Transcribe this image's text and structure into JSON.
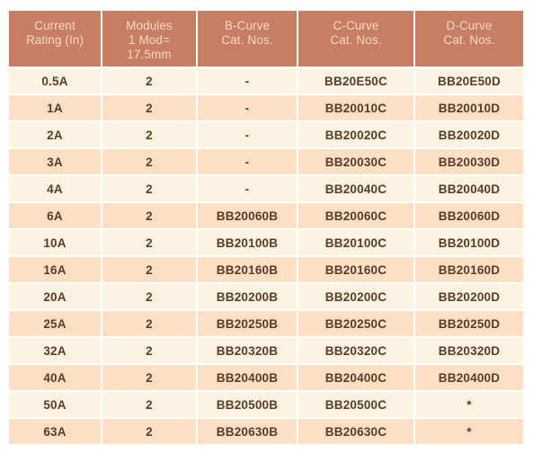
{
  "table": {
    "columns": [
      {
        "id": "current-rating",
        "label_lines": [
          "Current",
          "Rating (In)"
        ]
      },
      {
        "id": "modules",
        "label_lines": [
          "Modules",
          "1 Mod=",
          "17.5mm"
        ]
      },
      {
        "id": "b-curve",
        "label_lines": [
          "B-Curve",
          "Cat. Nos."
        ]
      },
      {
        "id": "c-curve",
        "label_lines": [
          "C-Curve",
          "Cat. Nos."
        ]
      },
      {
        "id": "d-curve",
        "label_lines": [
          "D-Curve",
          "Cat. Nos."
        ]
      }
    ],
    "rows": [
      [
        "0.5A",
        "2",
        "-",
        "BB20E50C",
        "BB20E50D"
      ],
      [
        "1A",
        "2",
        "-",
        "BB20010C",
        "BB20010D"
      ],
      [
        "2A",
        "2",
        "-",
        "BB20020C",
        "BB20020D"
      ],
      [
        "3A",
        "2",
        "-",
        "BB20030C",
        "BB20030D"
      ],
      [
        "4A",
        "2",
        "-",
        "BB20040C",
        "BB20040D"
      ],
      [
        "6A",
        "2",
        "BB20060B",
        "BB20060C",
        "BB20060D"
      ],
      [
        "10A",
        "2",
        "BB20100B",
        "BB20100C",
        "BB20100D"
      ],
      [
        "16A",
        "2",
        "BB20160B",
        "BB20160C",
        "BB20160D"
      ],
      [
        "20A",
        "2",
        "BB20200B",
        "BB20200C",
        "BB20200D"
      ],
      [
        "25A",
        "2",
        "BB20250B",
        "BB20250C",
        "BB20250D"
      ],
      [
        "32A",
        "2",
        "BB20320B",
        "BB20320C",
        "BB20320D"
      ],
      [
        "40A",
        "2",
        "BB20400B",
        "BB20400C",
        "BB20400D"
      ],
      [
        "50A",
        "2",
        "BB20500B",
        "BB20500C",
        "*"
      ],
      [
        "63A",
        "2",
        "BB20630B",
        "BB20630C",
        "*"
      ]
    ],
    "colors": {
      "header_bg": "#c87e62",
      "header_text": "#f5d9c8",
      "row_light": "#fdf3e3",
      "row_peach": "#fcdfc4",
      "cell_text": "#5d3a27",
      "page_bg": "#ffffff"
    }
  }
}
